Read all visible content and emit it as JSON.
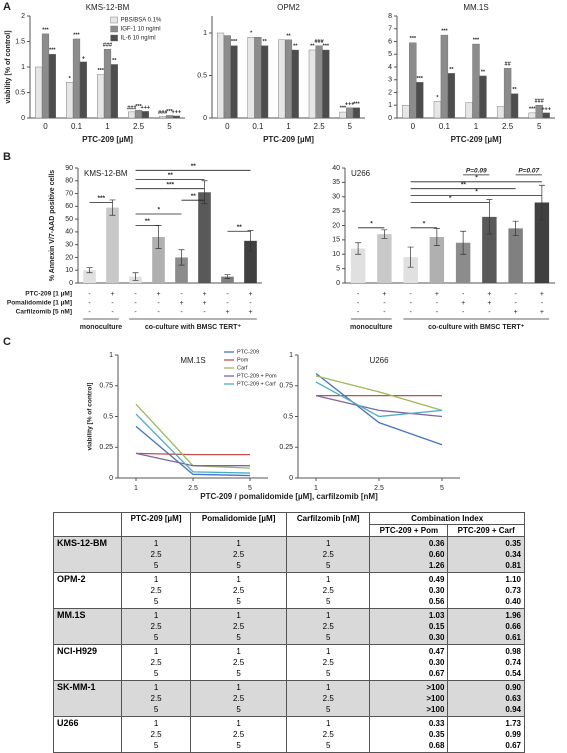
{
  "panel_labels": [
    "A",
    "B",
    "C"
  ],
  "chart_data": [
    {
      "type": "bar",
      "title": "KMS-12-BM",
      "categories": [
        "0",
        "0.1",
        "1",
        "2.5",
        "5"
      ],
      "xlabel": "PTC-209 [µM]",
      "ylabel": "viability [% of control]",
      "ylim": [
        0,
        2
      ],
      "yticks": [
        0,
        0.5,
        1,
        1.5,
        2
      ],
      "legend": true,
      "series": [
        {
          "name": "PBS/BSA 0.1%",
          "color": "#e6e6e6",
          "values": [
            1,
            0.7,
            0.85,
            0.12,
            0.03
          ],
          "annotations": [
            null,
            "*",
            "***",
            "###",
            "###"
          ]
        },
        {
          "name": "IGF-1 10 ng/ml",
          "color": "#8c8c8c",
          "values": [
            1.65,
            1.55,
            1.35,
            0.15,
            0.05
          ],
          "annotations": [
            "***",
            "***",
            "###",
            "***",
            "***"
          ]
        },
        {
          "name": "IL-6 10 ng/ml",
          "color": "#4d4d4d",
          "values": [
            1.25,
            1.1,
            1.05,
            0.13,
            0.04
          ],
          "annotations": [
            "***",
            "+",
            "**",
            "+++",
            "+++"
          ]
        }
      ]
    },
    {
      "type": "bar",
      "title": "OPM2",
      "categories": [
        "0",
        "0.1",
        "1",
        "2.5",
        "5"
      ],
      "xlabel": "PTC-209 [µM]",
      "ylim": [
        0,
        1.2
      ],
      "yticks": [
        0,
        0.5,
        1
      ],
      "series": [
        {
          "color": "#e6e6e6",
          "values": [
            1,
            0.95,
            0.92,
            0.8,
            0.07
          ],
          "annotations": [
            null,
            "*",
            null,
            "**",
            "***"
          ]
        },
        {
          "color": "#8c8c8c",
          "values": [
            0.97,
            0.95,
            0.92,
            0.85,
            0.12
          ],
          "annotations": [
            null,
            null,
            "**",
            "###",
            "+++"
          ]
        },
        {
          "color": "#4d4d4d",
          "values": [
            0.85,
            0.85,
            0.8,
            0.8,
            0.12
          ],
          "annotations": [
            "***",
            "**",
            "**",
            "***",
            "***"
          ]
        }
      ]
    },
    {
      "type": "bar",
      "title": "MM.1S",
      "categories": [
        "0",
        "0.1",
        "1",
        "2.5",
        "5"
      ],
      "xlabel": "PTC-209 [µM]",
      "ylim": [
        0,
        8
      ],
      "yticks": [
        0,
        1,
        2,
        3,
        4,
        5,
        6,
        7,
        8
      ],
      "series": [
        {
          "color": "#e6e6e6",
          "values": [
            1,
            1.3,
            1.2,
            0.9,
            0.4
          ],
          "annotations": [
            null,
            "*",
            null,
            null,
            "***"
          ]
        },
        {
          "color": "#8c8c8c",
          "values": [
            5.9,
            6.5,
            5.8,
            3.9,
            1.0
          ],
          "annotations": [
            "***",
            "***",
            "***",
            "##",
            "###"
          ]
        },
        {
          "color": "#4d4d4d",
          "values": [
            2.8,
            3.5,
            3.3,
            1.9,
            0.4
          ],
          "annotations": [
            "***",
            "**",
            "**",
            "**",
            "+++"
          ]
        }
      ]
    },
    {
      "type": "bar",
      "title": "KMS-12-BM",
      "ylabel": "% Annexin V/7-AAD positive cells",
      "values": [
        10,
        59,
        5,
        36,
        20,
        71,
        5,
        33
      ],
      "errors": [
        2,
        6,
        3,
        9,
        6,
        9,
        1.5,
        8
      ],
      "colors": [
        "#e0e0e0",
        "#c8c8c8",
        "#e0e0e0",
        "#b0b0b0",
        "#8c8c8c",
        "#595959",
        "#808080",
        "#404040"
      ],
      "ylim": [
        0,
        90
      ],
      "yticks": [
        0,
        10,
        20,
        30,
        40,
        50,
        60,
        70,
        80,
        90
      ],
      "brackets": [
        "***",
        "**",
        "*",
        "**",
        "***",
        "**",
        "**",
        "**"
      ],
      "condition_labels": [
        "PTC-209 [1 µM]",
        "Pomalidomide [1 µM]",
        "Carfilzomib [5 nM]"
      ],
      "conditions": [
        [
          "-",
          "+",
          "-",
          "+",
          "-",
          "+",
          "-",
          "+"
        ],
        [
          "-",
          "-",
          "-",
          "-",
          "+",
          "+",
          "-",
          "-"
        ],
        [
          "-",
          "-",
          "-",
          "-",
          "-",
          "-",
          "+",
          "+"
        ]
      ],
      "groups": [
        "monoculture",
        "co-culture with BMSC TERT⁺"
      ]
    },
    {
      "type": "bar",
      "title": "U266",
      "values": [
        12,
        17,
        9,
        16,
        14,
        23,
        19,
        28
      ],
      "errors": [
        2,
        1.5,
        3.5,
        3,
        4,
        6,
        2.5,
        6
      ],
      "colors": [
        "#e0e0e0",
        "#c8c8c8",
        "#e0e0e0",
        "#b0b0b0",
        "#8c8c8c",
        "#595959",
        "#808080",
        "#404040"
      ],
      "ylim": [
        0,
        40
      ],
      "yticks": [
        0,
        5,
        10,
        15,
        20,
        25,
        30,
        35,
        40
      ],
      "brackets": [
        "*",
        "*",
        "*",
        "*",
        "**",
        "*",
        "P=0.09",
        "P=0.07"
      ],
      "conditions": [
        [
          "-",
          "+",
          "-",
          "+",
          "-",
          "+",
          "-",
          "+"
        ],
        [
          "-",
          "-",
          "-",
          "-",
          "+",
          "+",
          "-",
          "-"
        ],
        [
          "-",
          "-",
          "-",
          "-",
          "-",
          "-",
          "+",
          "+"
        ]
      ],
      "groups": [
        "monoculture",
        "co-culture with BMSC TERT⁺"
      ]
    },
    {
      "type": "line",
      "title": "MM.1S",
      "categories": [
        "1",
        "2.5",
        "5"
      ],
      "ylabel": "viability [% of control]",
      "xlabel": "PTC-209 / pomalidomide [µM], carfilzomib [nM]",
      "ylim": [
        0,
        1
      ],
      "yticks": [
        0,
        0.25,
        0.5,
        0.75,
        1
      ],
      "legend": true,
      "series": [
        {
          "name": "PTC-209",
          "color": "#4472c4",
          "values": [
            0.42,
            0.03,
            0.02
          ]
        },
        {
          "name": "Pom",
          "color": "#c0504d",
          "values": [
            0.2,
            0.19,
            0.19
          ]
        },
        {
          "name": "Carf",
          "color": "#9bbb59",
          "values": [
            0.6,
            0.1,
            0.08
          ]
        },
        {
          "name": "PTC-209 + Pom",
          "color": "#8064a2",
          "values": [
            0.2,
            0.1,
            0.1
          ]
        },
        {
          "name": "PTC-209 + Carf",
          "color": "#4bacc6",
          "values": [
            0.52,
            0.05,
            0.04
          ]
        }
      ]
    },
    {
      "type": "line",
      "title": "U266",
      "categories": [
        "1",
        "2.5",
        "5"
      ],
      "ylim": [
        0,
        1
      ],
      "yticks": [
        0,
        0.25,
        0.5,
        0.75,
        1
      ],
      "series": [
        {
          "color": "#4472c4",
          "values": [
            0.85,
            0.45,
            0.27
          ]
        },
        {
          "color": "#c0504d",
          "values": [
            0.67,
            0.67,
            0.67
          ]
        },
        {
          "color": "#9bbb59",
          "values": [
            0.83,
            0.7,
            0.55
          ]
        },
        {
          "color": "#8064a2",
          "values": [
            0.67,
            0.55,
            0.5
          ]
        },
        {
          "color": "#4bacc6",
          "values": [
            0.78,
            0.5,
            0.55
          ]
        }
      ]
    }
  ],
  "table": {
    "columns": [
      "PTC-209 [µM]",
      "Pomalidomide [µM]",
      "Carfilzomib [nM]"
    ],
    "ci": "Combination Index",
    "ci_columns": [
      "PTC-209 + Pom",
      "PTC-209 + Carf"
    ],
    "rows": [
      {
        "name": "KMS-12-BM",
        "cells": [
          [
            "1",
            "2.5",
            "5"
          ],
          [
            "1",
            "2.5",
            "5"
          ],
          [
            "1",
            "2.5",
            "5"
          ],
          [
            "0.36",
            "0.60",
            "1.26"
          ],
          [
            "0.35",
            "0.34",
            "0.81"
          ]
        ]
      },
      {
        "name": "OPM-2",
        "cells": [
          [
            "1",
            "2.5",
            "5"
          ],
          [
            "1",
            "2.5",
            "5"
          ],
          [
            "1",
            "2.5",
            "5"
          ],
          [
            "0.49",
            "0.30",
            "0.56"
          ],
          [
            "1.10",
            "0.73",
            "0.40"
          ]
        ]
      },
      {
        "name": "MM.1S",
        "cells": [
          [
            "1",
            "2.5",
            "5"
          ],
          [
            "1",
            "2.5",
            "5"
          ],
          [
            "1",
            "2.5",
            "5"
          ],
          [
            "1.03",
            "0.15",
            "0.30"
          ],
          [
            "1.96",
            "0.66",
            "0.61"
          ]
        ]
      },
      {
        "name": "NCI-H929",
        "cells": [
          [
            "1",
            "2.5",
            "5"
          ],
          [
            "1",
            "2.5",
            "5"
          ],
          [
            "1",
            "2.5",
            "5"
          ],
          [
            "0.47",
            "0.30",
            "0.67"
          ],
          [
            "0.98",
            "0.74",
            "0.54"
          ]
        ]
      },
      {
        "name": "SK-MM-1",
        "cells": [
          [
            "1",
            "2.5",
            "5"
          ],
          [
            "1",
            "2.5",
            "5"
          ],
          [
            "1",
            "2.5",
            "5"
          ],
          [
            ">100",
            ">100",
            ">100"
          ],
          [
            "0.90",
            "0.63",
            "0.94"
          ]
        ]
      },
      {
        "name": "U266",
        "cells": [
          [
            "1",
            "2.5",
            "5"
          ],
          [
            "1",
            "2.5",
            "5"
          ],
          [
            "1",
            "2.5",
            "5"
          ],
          [
            "0.33",
            "0.35",
            "0.68"
          ],
          [
            "1.73",
            "0.99",
            "0.67"
          ]
        ]
      }
    ]
  }
}
